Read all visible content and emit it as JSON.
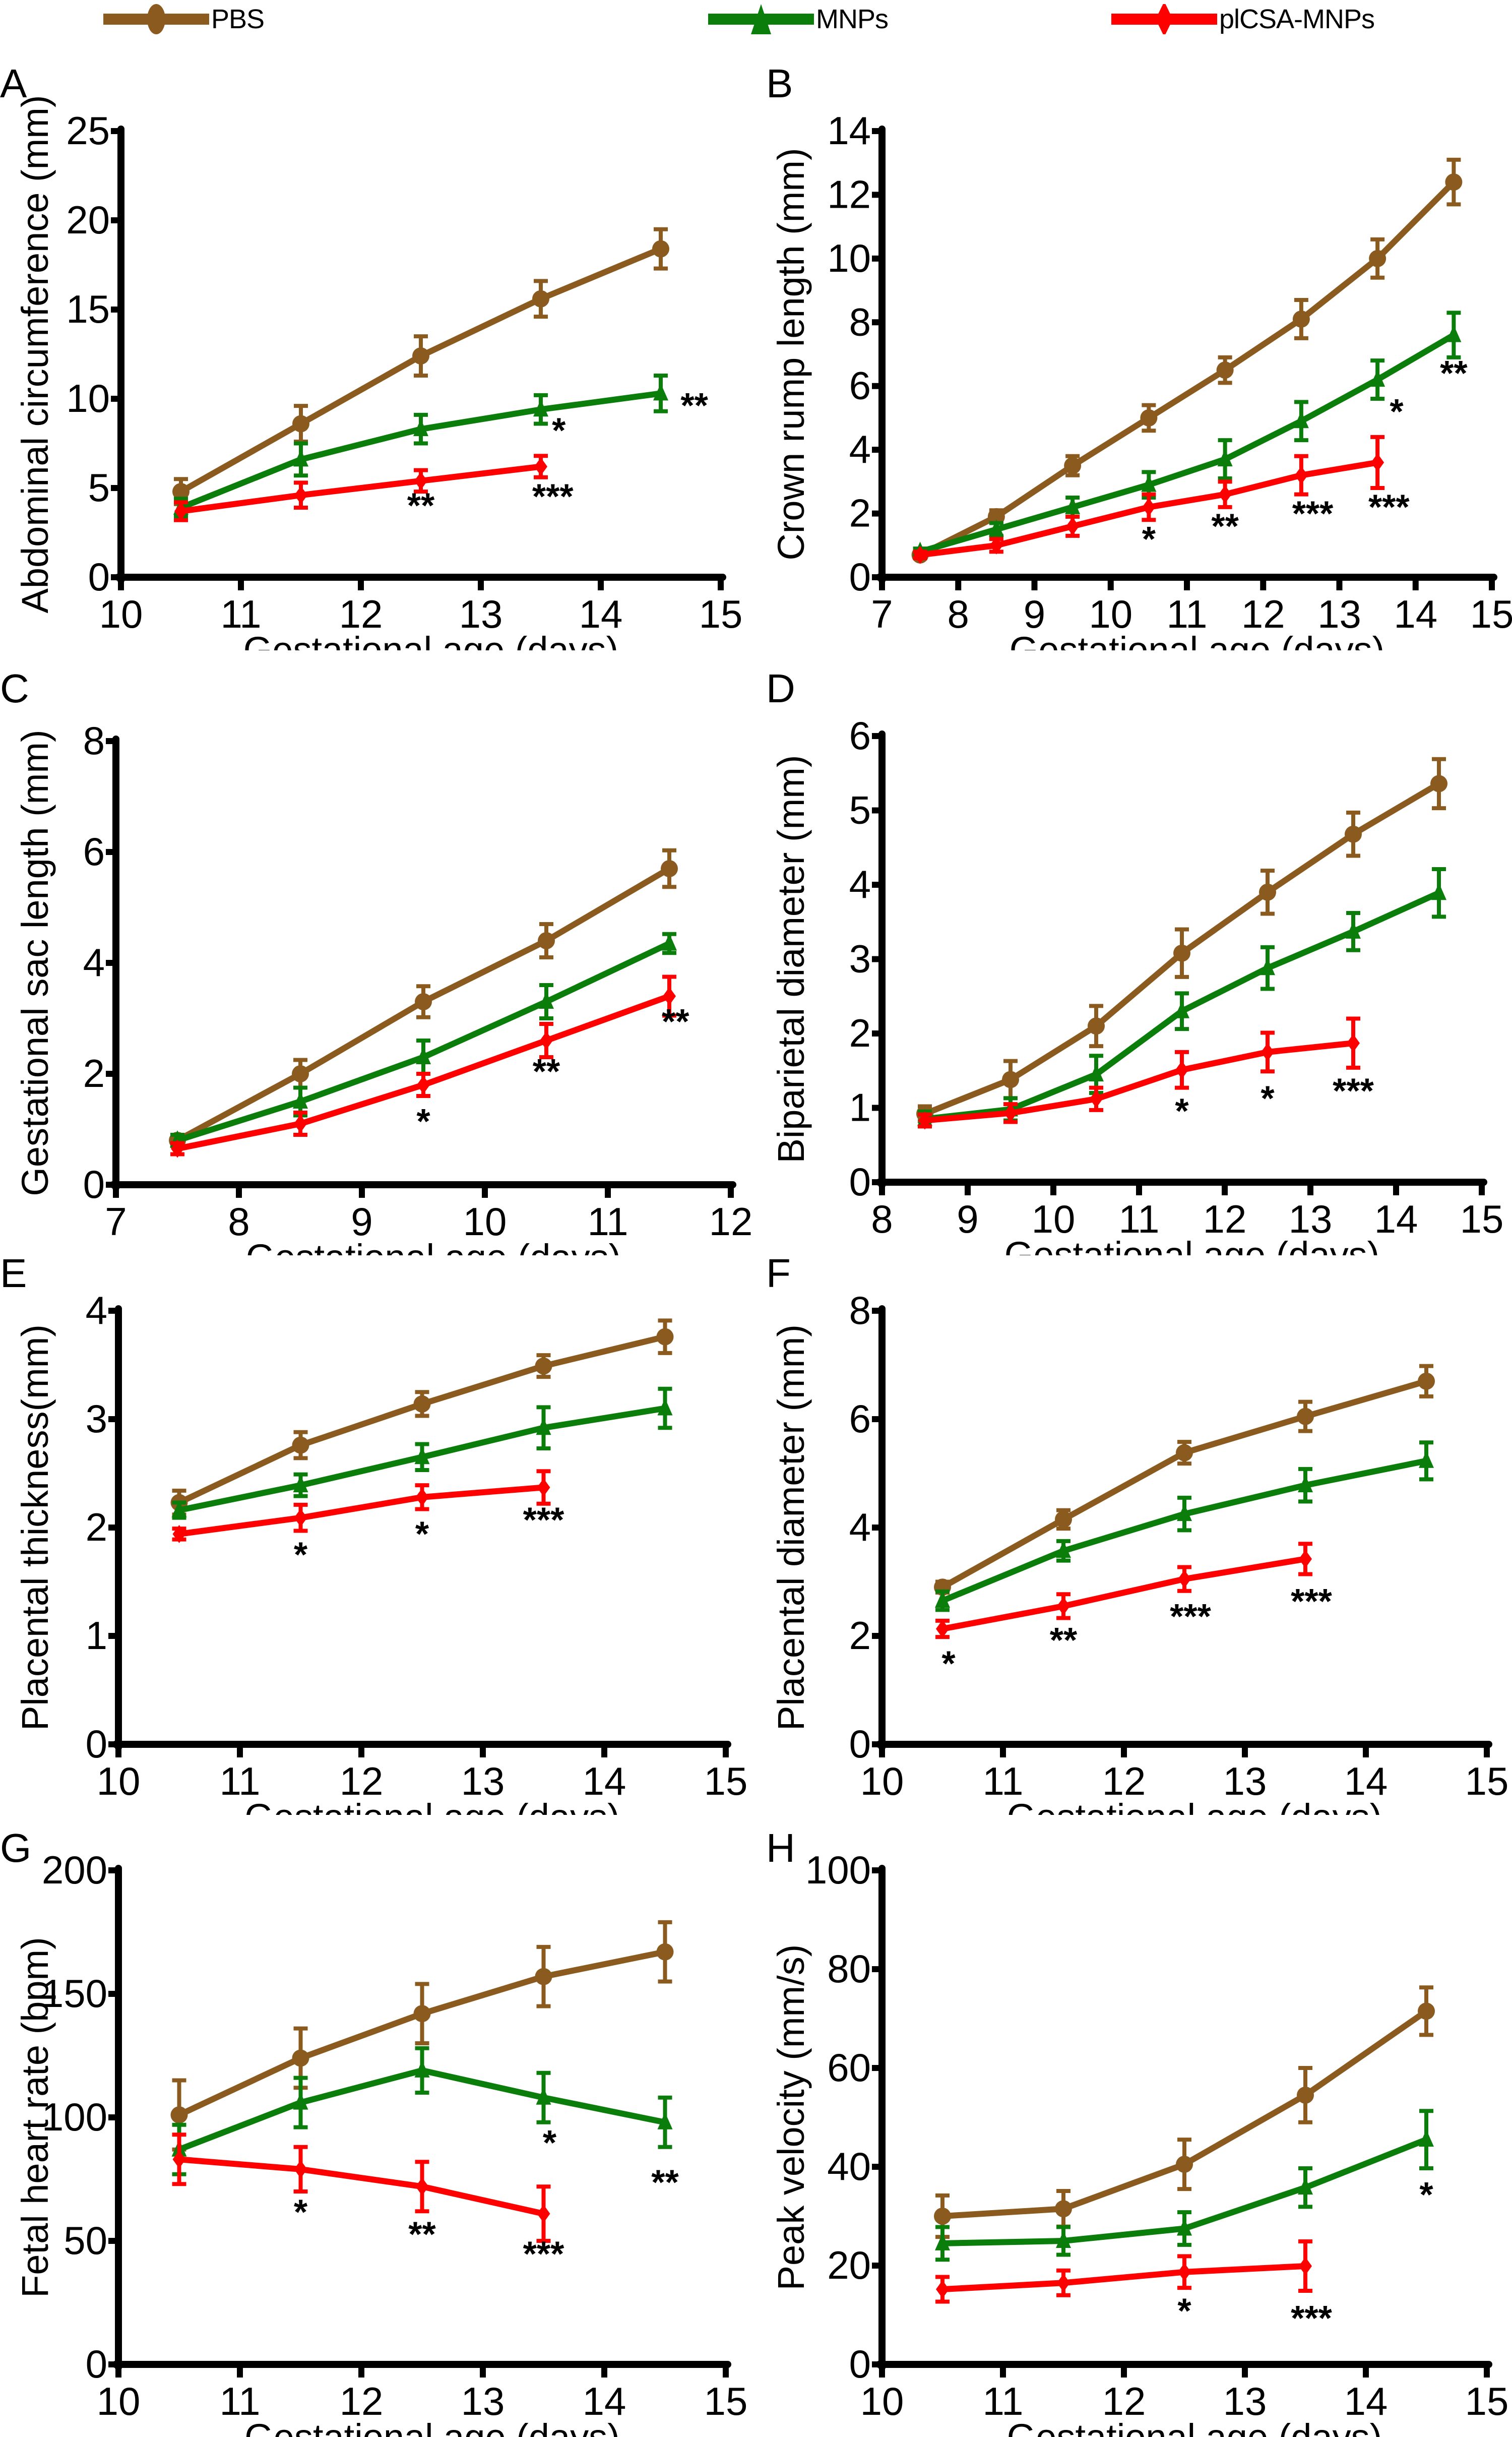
{
  "legend": {
    "series": [
      {
        "name": "PBS",
        "color": "#8B5A1E",
        "marker": "circle"
      },
      {
        "name": "MNPs",
        "color": "#0A7D0A",
        "marker": "triangle"
      },
      {
        "name": "plCSA-MNPs",
        "color": "#FF0000",
        "marker": "diamond"
      }
    ]
  },
  "chart_data": [
    {
      "panel": "A",
      "type": "line",
      "xlabel": "Gestational age (days)",
      "ylabel": "Abdominal circumference (mm)",
      "xlim": [
        10,
        15
      ],
      "ylim": [
        0,
        25
      ],
      "xticks": [
        10,
        11,
        12,
        13,
        14,
        15
      ],
      "yticks": [
        0,
        5,
        10,
        15,
        20,
        25
      ],
      "series": [
        {
          "name": "PBS",
          "x": [
            10.5,
            11.5,
            12.5,
            13.5,
            14.5
          ],
          "y": [
            4.8,
            8.6,
            12.4,
            15.6,
            18.4
          ],
          "err": [
            0.7,
            1.0,
            1.1,
            1.0,
            1.1
          ]
        },
        {
          "name": "MNPs",
          "x": [
            10.5,
            11.5,
            12.5,
            13.5,
            14.5
          ],
          "y": [
            3.9,
            6.6,
            8.3,
            9.4,
            10.3
          ],
          "err": [
            0.5,
            0.9,
            0.8,
            0.8,
            1.0
          ]
        },
        {
          "name": "plCSA-MNPs",
          "x": [
            10.5,
            11.5,
            12.5,
            13.5
          ],
          "y": [
            3.7,
            4.6,
            5.4,
            6.2
          ],
          "err": [
            0.5,
            0.7,
            0.6,
            0.6
          ]
        }
      ],
      "annotations": [
        {
          "x": 13.65,
          "y": 8.4,
          "text": "*"
        },
        {
          "x": 14.78,
          "y": 9.8,
          "text": "**"
        },
        {
          "x": 12.5,
          "y": 4.2,
          "text": "**"
        },
        {
          "x": 13.6,
          "y": 4.7,
          "text": "***"
        }
      ]
    },
    {
      "panel": "B",
      "type": "line",
      "xlabel": "Gestational age (days)",
      "ylabel": "Crown rump length (mm)",
      "xlim": [
        7,
        15
      ],
      "ylim": [
        0,
        14
      ],
      "xticks": [
        7,
        8,
        9,
        10,
        11,
        12,
        13,
        14,
        15
      ],
      "yticks": [
        0,
        2,
        4,
        6,
        8,
        10,
        12,
        14
      ],
      "series": [
        {
          "name": "PBS",
          "x": [
            7.5,
            8.5,
            9.5,
            10.5,
            11.5,
            12.5,
            13.5,
            14.5
          ],
          "y": [
            0.7,
            1.9,
            3.5,
            5.0,
            6.5,
            8.1,
            10.0,
            12.4
          ],
          "err": [
            0.1,
            0.2,
            0.3,
            0.4,
            0.4,
            0.6,
            0.6,
            0.7
          ]
        },
        {
          "name": "MNPs",
          "x": [
            7.5,
            8.5,
            9.5,
            10.5,
            11.5,
            12.5,
            13.5,
            14.5
          ],
          "y": [
            0.8,
            1.5,
            2.2,
            2.9,
            3.7,
            4.9,
            6.2,
            7.6
          ],
          "err": [
            0.1,
            0.2,
            0.3,
            0.4,
            0.6,
            0.6,
            0.6,
            0.7
          ]
        },
        {
          "name": "plCSA-MNPs",
          "x": [
            7.5,
            8.5,
            9.5,
            10.5,
            11.5,
            12.5,
            13.5
          ],
          "y": [
            0.7,
            1.0,
            1.6,
            2.2,
            2.6,
            3.2,
            3.6
          ],
          "err": [
            0.1,
            0.2,
            0.3,
            0.4,
            0.4,
            0.6,
            0.8
          ]
        }
      ],
      "annotations": [
        {
          "x": 10.5,
          "y": 1.3,
          "text": "*"
        },
        {
          "x": 11.5,
          "y": 1.7,
          "text": "**"
        },
        {
          "x": 12.65,
          "y": 2.1,
          "text": "***"
        },
        {
          "x": 13.65,
          "y": 2.3,
          "text": "***"
        },
        {
          "x": 13.75,
          "y": 5.3,
          "text": "*"
        },
        {
          "x": 14.5,
          "y": 6.5,
          "text": "**"
        }
      ]
    },
    {
      "panel": "C",
      "type": "line",
      "xlabel": "Gestational age (days)",
      "ylabel": "Gestational sac length (mm)",
      "xlim": [
        7,
        12
      ],
      "ylim": [
        0,
        8
      ],
      "xticks": [
        7,
        8,
        9,
        10,
        11,
        12
      ],
      "yticks": [
        0,
        2,
        4,
        6,
        8
      ],
      "series": [
        {
          "name": "PBS",
          "x": [
            7.5,
            8.5,
            9.5,
            10.5,
            11.5
          ],
          "y": [
            0.8,
            2.0,
            3.3,
            4.4,
            5.7
          ],
          "err": [
            0.1,
            0.25,
            0.28,
            0.3,
            0.33
          ]
        },
        {
          "name": "MNPs",
          "x": [
            7.5,
            8.5,
            9.5,
            10.5,
            11.5
          ],
          "y": [
            0.8,
            1.5,
            2.3,
            3.3,
            4.35
          ],
          "err": [
            0.1,
            0.25,
            0.3,
            0.3,
            0.17
          ]
        },
        {
          "name": "plCSA-MNPs",
          "x": [
            7.5,
            8.5,
            9.5,
            10.5,
            11.5
          ],
          "y": [
            0.65,
            1.1,
            1.8,
            2.6,
            3.4
          ],
          "err": [
            0.1,
            0.2,
            0.2,
            0.3,
            0.35
          ]
        }
      ],
      "annotations": [
        {
          "x": 9.5,
          "y": 1.2,
          "text": "*"
        },
        {
          "x": 10.5,
          "y": 2.1,
          "text": "**"
        },
        {
          "x": 11.55,
          "y": 3.0,
          "text": "**"
        }
      ]
    },
    {
      "panel": "D",
      "type": "line",
      "xlabel": "Gestational age (days)",
      "ylabel": "Biparietal diameter (mm)",
      "xlim": [
        8,
        15
      ],
      "ylim": [
        0,
        6
      ],
      "xticks": [
        8,
        9,
        10,
        11,
        12,
        13,
        14,
        15
      ],
      "yticks": [
        0,
        1,
        2,
        3,
        4,
        5,
        6
      ],
      "series": [
        {
          "name": "PBS",
          "x": [
            8.5,
            9.5,
            10.5,
            11.5,
            12.5,
            13.5,
            14.5
          ],
          "y": [
            0.92,
            1.38,
            2.1,
            3.08,
            3.9,
            4.68,
            5.36
          ],
          "err": [
            0.1,
            0.25,
            0.27,
            0.32,
            0.29,
            0.29,
            0.33
          ]
        },
        {
          "name": "MNPs",
          "x": [
            8.5,
            9.5,
            10.5,
            11.5,
            12.5,
            13.5,
            14.5
          ],
          "y": [
            0.85,
            0.98,
            1.45,
            2.3,
            2.88,
            3.37,
            3.89
          ],
          "err": [
            0.1,
            0.15,
            0.25,
            0.24,
            0.28,
            0.25,
            0.32
          ]
        },
        {
          "name": "plCSA-MNPs",
          "x": [
            8.5,
            9.5,
            10.5,
            11.5,
            12.5,
            13.5
          ],
          "y": [
            0.83,
            0.93,
            1.12,
            1.51,
            1.75,
            1.87
          ],
          "err": [
            0.08,
            0.12,
            0.15,
            0.24,
            0.26,
            0.33
          ]
        }
      ],
      "annotations": [
        {
          "x": 11.5,
          "y": 1.0,
          "text": "*"
        },
        {
          "x": 12.5,
          "y": 1.17,
          "text": "*"
        },
        {
          "x": 13.5,
          "y": 1.27,
          "text": "***"
        }
      ]
    },
    {
      "panel": "E",
      "type": "line",
      "xlabel": "Gestational age (days)",
      "ylabel": "Placental thickness(mm)",
      "xlim": [
        10,
        15
      ],
      "ylim": [
        0,
        4
      ],
      "xticks": [
        10,
        11,
        12,
        13,
        14,
        15
      ],
      "yticks": [
        0,
        1,
        2,
        3,
        4
      ],
      "series": [
        {
          "name": "PBS",
          "x": [
            10.5,
            11.5,
            12.5,
            13.5,
            14.5
          ],
          "y": [
            2.23,
            2.76,
            3.14,
            3.49,
            3.76
          ],
          "err": [
            0.11,
            0.12,
            0.11,
            0.1,
            0.15
          ]
        },
        {
          "name": "MNPs",
          "x": [
            10.5,
            11.5,
            12.5,
            13.5,
            14.5
          ],
          "y": [
            2.16,
            2.39,
            2.65,
            2.92,
            3.1
          ],
          "err": [
            0.07,
            0.1,
            0.12,
            0.19,
            0.18
          ]
        },
        {
          "name": "plCSA-MNPs",
          "x": [
            10.5,
            11.5,
            12.5,
            13.5
          ],
          "y": [
            1.94,
            2.09,
            2.28,
            2.37
          ],
          "err": [
            0.05,
            0.12,
            0.11,
            0.15
          ]
        }
      ],
      "annotations": [
        {
          "x": 11.5,
          "y": 1.78,
          "text": "*"
        },
        {
          "x": 12.5,
          "y": 1.97,
          "text": "*"
        },
        {
          "x": 13.5,
          "y": 2.1,
          "text": "***"
        }
      ]
    },
    {
      "panel": "F",
      "type": "line",
      "xlabel": "Gestational age (days)",
      "ylabel": "Placental diameter (mm)",
      "xlim": [
        10,
        15
      ],
      "ylim": [
        0,
        8
      ],
      "xticks": [
        10,
        11,
        12,
        13,
        14,
        15
      ],
      "yticks": [
        0,
        2,
        4,
        6,
        8
      ],
      "series": [
        {
          "name": "PBS",
          "x": [
            10.5,
            11.5,
            12.5,
            13.5,
            14.5
          ],
          "y": [
            2.9,
            4.15,
            5.38,
            6.05,
            6.7
          ],
          "err": [
            0.1,
            0.17,
            0.2,
            0.27,
            0.28
          ]
        },
        {
          "name": "MNPs",
          "x": [
            10.5,
            11.5,
            12.5,
            13.5,
            14.5
          ],
          "y": [
            2.65,
            3.57,
            4.25,
            4.78,
            5.23
          ],
          "err": [
            0.17,
            0.18,
            0.3,
            0.3,
            0.34
          ]
        },
        {
          "name": "plCSA-MNPs",
          "x": [
            10.5,
            11.5,
            12.5,
            13.5
          ],
          "y": [
            2.13,
            2.55,
            3.05,
            3.42
          ],
          "err": [
            0.15,
            0.22,
            0.22,
            0.28
          ]
        }
      ],
      "annotations": [
        {
          "x": 10.55,
          "y": 1.55,
          "text": "*"
        },
        {
          "x": 11.5,
          "y": 1.98,
          "text": "**"
        },
        {
          "x": 12.55,
          "y": 2.42,
          "text": "***"
        },
        {
          "x": 13.55,
          "y": 2.7,
          "text": "***"
        }
      ]
    },
    {
      "panel": "G",
      "type": "line",
      "xlabel": "Gestational age (days)",
      "ylabel": "Fetal heart rate (bpm)",
      "xlim": [
        10,
        15
      ],
      "ylim": [
        0,
        200
      ],
      "xticks": [
        10,
        11,
        12,
        13,
        14,
        15
      ],
      "yticks": [
        0,
        50,
        100,
        150,
        200
      ],
      "series": [
        {
          "name": "PBS",
          "x": [
            10.5,
            11.5,
            12.5,
            13.5,
            14.5
          ],
          "y": [
            101,
            124,
            142,
            157,
            167
          ],
          "err": [
            14,
            12,
            12,
            12,
            12
          ]
        },
        {
          "name": "MNPs",
          "x": [
            10.5,
            11.5,
            12.5,
            13.5,
            14.5
          ],
          "y": [
            87,
            106,
            119,
            108,
            98
          ],
          "err": [
            10,
            10,
            9,
            10,
            10
          ]
        },
        {
          "name": "plCSA-MNPs",
          "x": [
            10.5,
            11.5,
            12.5,
            13.5
          ],
          "y": [
            83,
            79,
            72,
            61
          ],
          "err": [
            10,
            9,
            10,
            11
          ]
        }
      ],
      "annotations": [
        {
          "x": 13.55,
          "y": 91,
          "text": "*"
        },
        {
          "x": 14.5,
          "y": 75,
          "text": "**"
        },
        {
          "x": 11.5,
          "y": 63,
          "text": "*"
        },
        {
          "x": 12.5,
          "y": 54,
          "text": "**"
        },
        {
          "x": 13.5,
          "y": 46,
          "text": "***"
        }
      ]
    },
    {
      "panel": "H",
      "type": "line",
      "xlabel": "Gestational age (days)",
      "ylabel": "Peak velocity (mm/s)",
      "xlim": [
        10,
        15
      ],
      "ylim": [
        0,
        100
      ],
      "xticks": [
        10,
        11,
        12,
        13,
        14,
        15
      ],
      "yticks": [
        0,
        20,
        40,
        60,
        80,
        100
      ],
      "series": [
        {
          "name": "PBS",
          "x": [
            10.5,
            11.5,
            12.5,
            13.5,
            14.5
          ],
          "y": [
            30,
            31.5,
            40.5,
            54.5,
            71.5
          ],
          "err": [
            4.2,
            3.6,
            5,
            5.5,
            4.8
          ]
        },
        {
          "name": "MNPs",
          "x": [
            10.5,
            11.5,
            12.5,
            13.5,
            14.5
          ],
          "y": [
            24.5,
            25,
            27.5,
            35.8,
            45.5
          ],
          "err": [
            3.3,
            2.8,
            3.3,
            3.9,
            5.8
          ]
        },
        {
          "name": "plCSA-MNPs",
          "x": [
            10.5,
            11.5,
            12.5,
            13.5
          ],
          "y": [
            15.2,
            16.5,
            18.7,
            19.9
          ],
          "err": [
            2.5,
            2.5,
            3.2,
            5
          ]
        }
      ],
      "annotations": [
        {
          "x": 14.5,
          "y": 35,
          "text": "*"
        },
        {
          "x": 12.5,
          "y": 11.5,
          "text": "*"
        },
        {
          "x": 13.55,
          "y": 10,
          "text": "***"
        }
      ]
    }
  ]
}
